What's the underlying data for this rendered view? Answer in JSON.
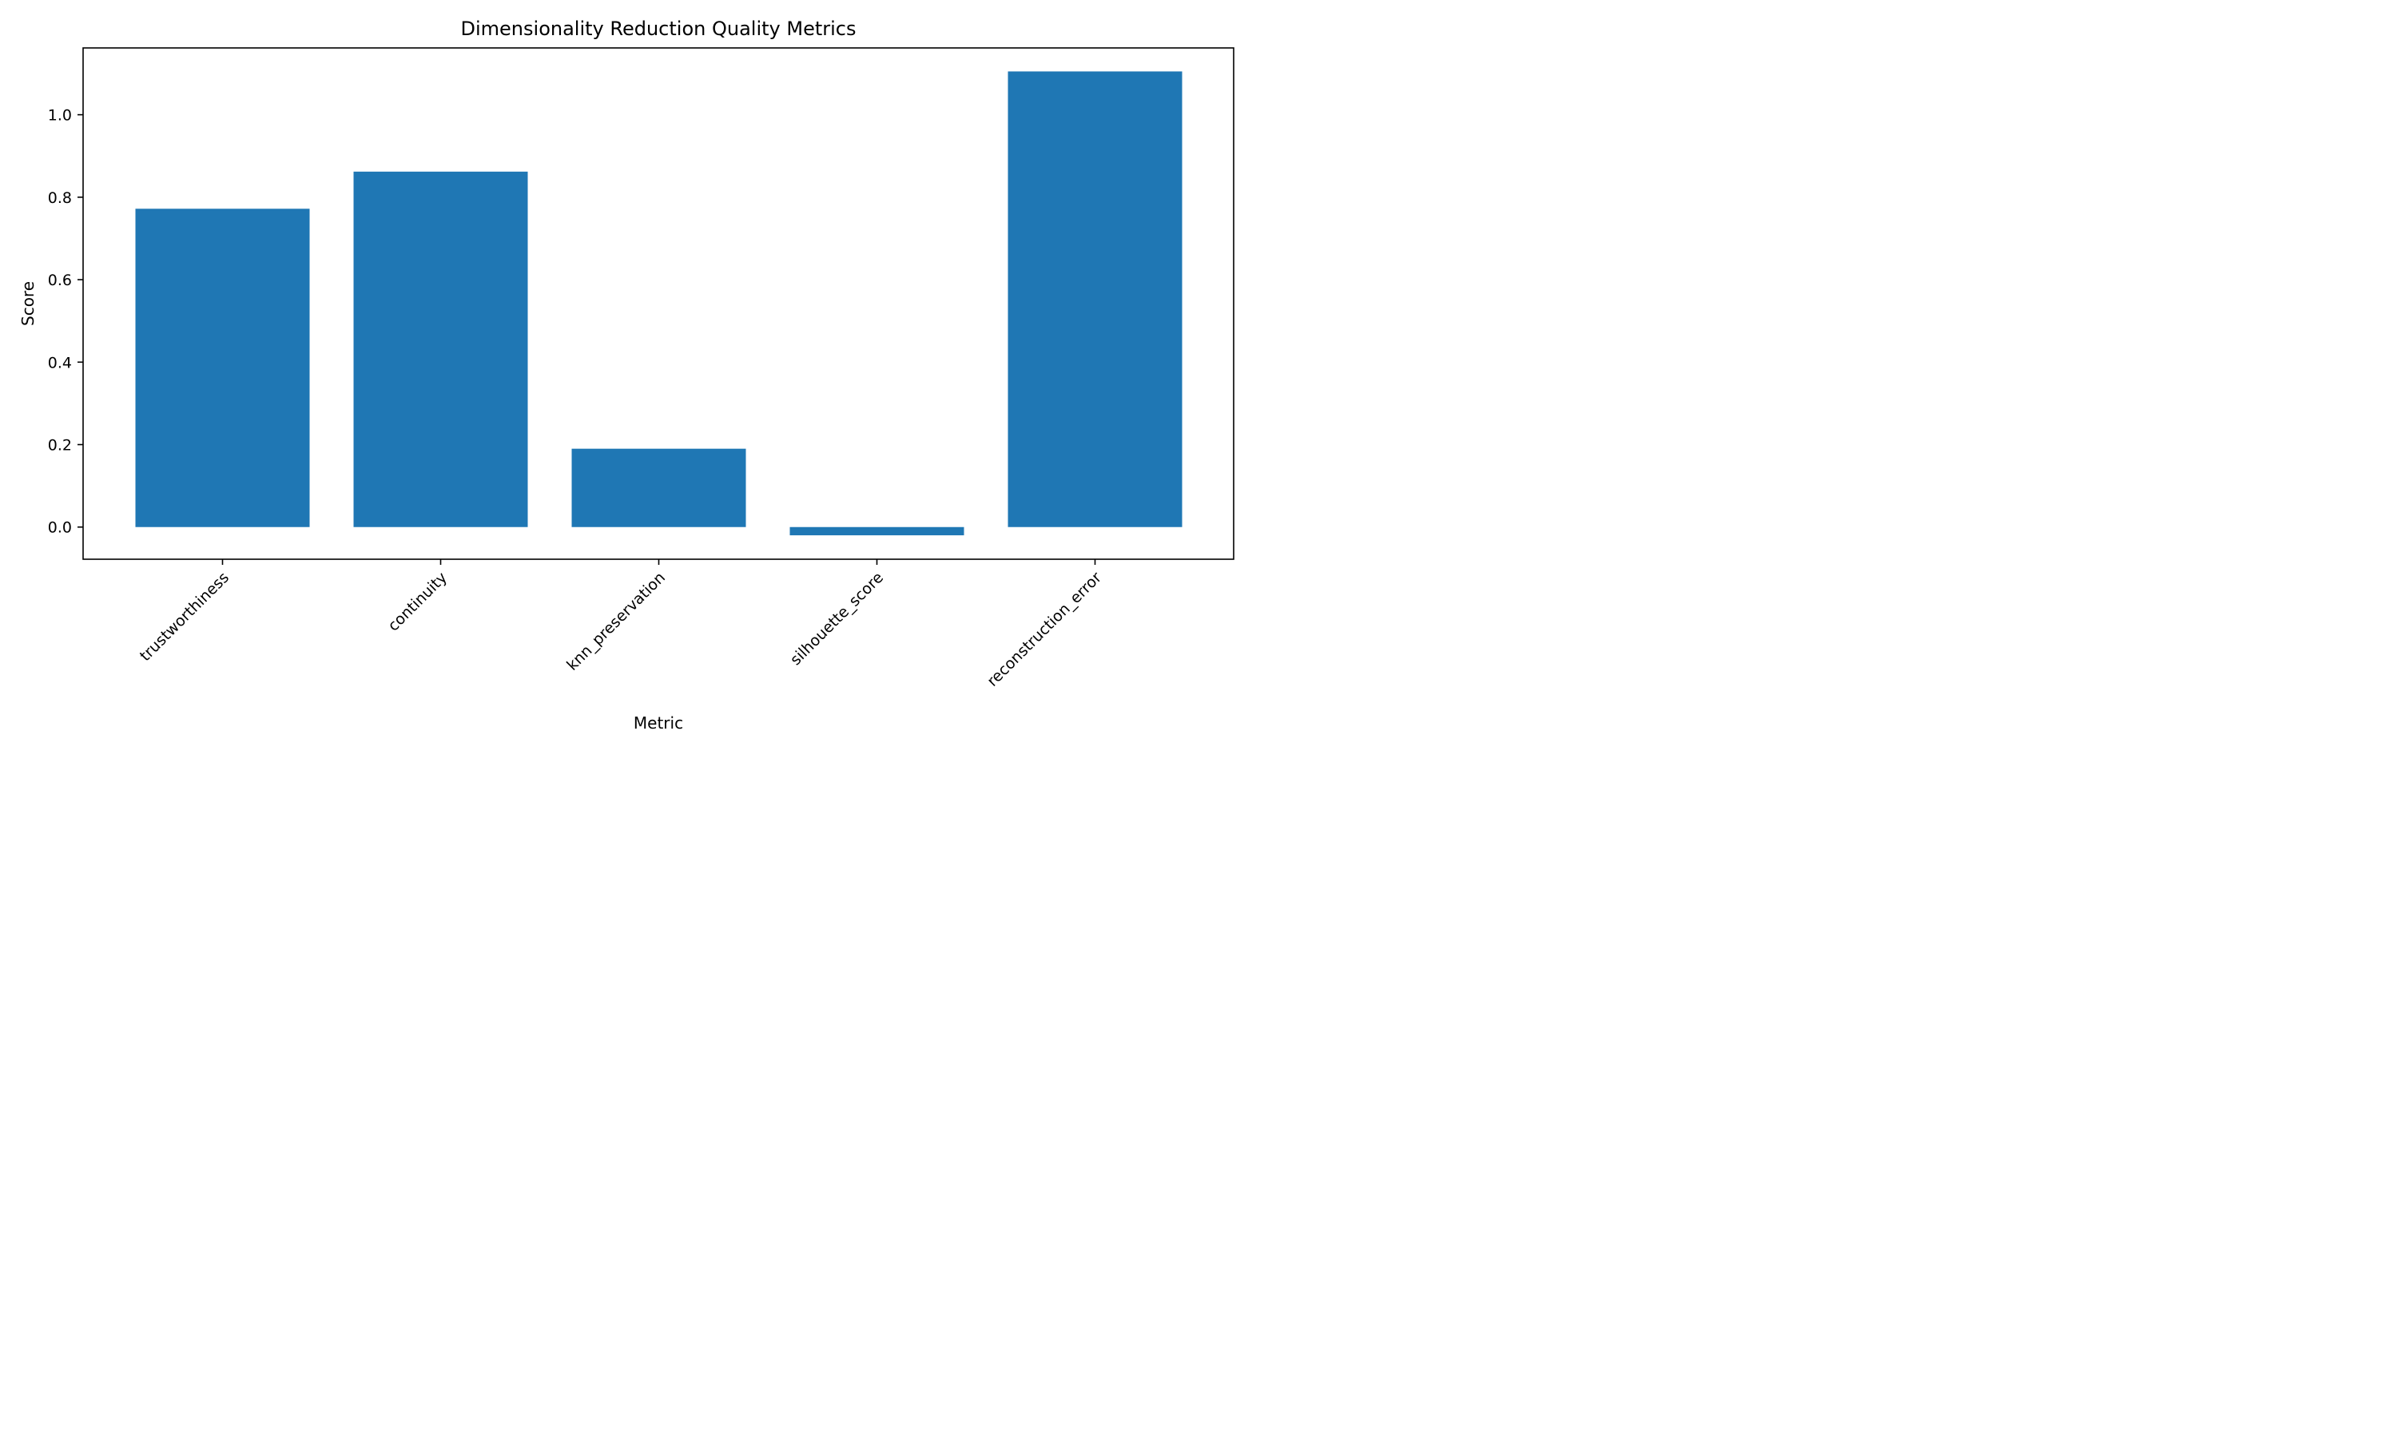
{
  "chart_data": {
    "type": "bar",
    "title": "Dimensionality Reduction Quality Metrics",
    "xlabel": "Metric",
    "ylabel": "Score",
    "categories": [
      "trustworthiness",
      "continuity",
      "knn_preservation",
      "silhouette_score",
      "reconstruction_error"
    ],
    "values": [
      0.772,
      0.862,
      0.19,
      -0.02,
      1.105
    ],
    "ylim": [
      -0.078,
      1.162
    ],
    "yticks": [
      0.0,
      0.2,
      0.4,
      0.6,
      0.8,
      1.0
    ],
    "ytick_labels": [
      "0.0",
      "0.2",
      "0.4",
      "0.6",
      "0.8",
      "1.0"
    ],
    "grid": false,
    "bar_color": "#1f77b4"
  }
}
